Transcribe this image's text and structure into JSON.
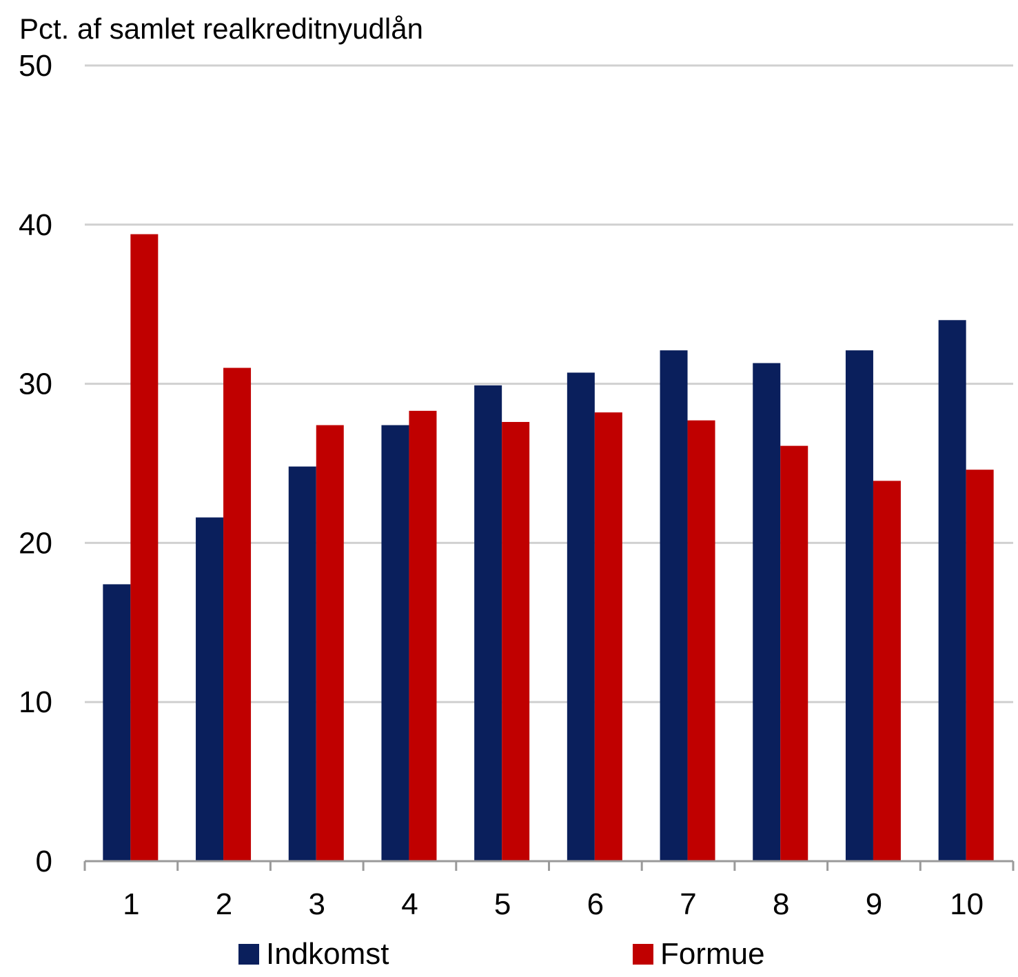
{
  "chart_data": {
    "type": "bar",
    "ylabel": "Pct. af samlet realkreditnyudlån",
    "xlabel": "",
    "ylim": [
      0,
      50
    ],
    "yticks": [
      0,
      10,
      20,
      30,
      40,
      50
    ],
    "categories": [
      "1",
      "2",
      "3",
      "4",
      "5",
      "6",
      "7",
      "8",
      "9",
      "10"
    ],
    "series": [
      {
        "name": "Indkomst",
        "color": "#0a1f5c",
        "values": [
          17.4,
          21.6,
          24.8,
          27.4,
          29.9,
          30.7,
          32.1,
          31.3,
          32.1,
          34.0
        ]
      },
      {
        "name": "Formue",
        "color": "#c00000",
        "values": [
          39.4,
          31.0,
          27.4,
          28.3,
          27.6,
          28.2,
          27.7,
          26.1,
          23.9,
          24.6
        ]
      }
    ],
    "grid": true,
    "legend_position": "bottom"
  }
}
